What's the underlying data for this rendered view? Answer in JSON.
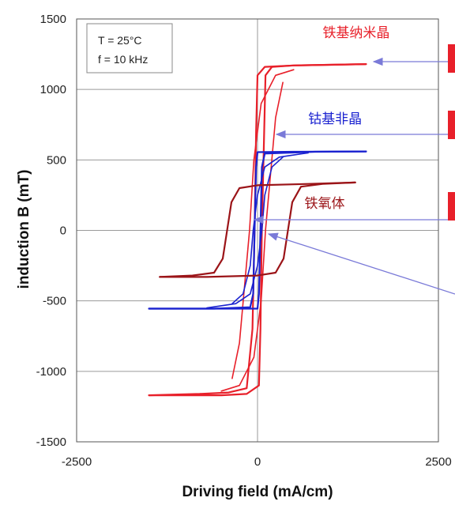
{
  "chart_data": {
    "type": "line",
    "title": "",
    "xlabel": "Driving field (mA/cm)",
    "ylabel": "induction B (mT)",
    "xlim": [
      -2500,
      2500
    ],
    "ylim": [
      -1500,
      1500
    ],
    "x_ticks": [
      "-2500",
      "0",
      "2500"
    ],
    "y_ticks": [
      "1500",
      "1000",
      "500",
      "0",
      "-500",
      "-1000",
      "-1500"
    ],
    "grid": true,
    "conditions": [
      "T = 25°C",
      "f = 10 kHz"
    ],
    "colors": {
      "red": "#e8202a",
      "blue": "#1a22d0",
      "darkred": "#9b1418",
      "annotation": "#7a7ad8"
    },
    "series": [
      {
        "name": "铁基纳米晶",
        "color": "#e8202a",
        "upper": [
          [
            -1500,
            -1170
          ],
          [
            -1200,
            -1165
          ],
          [
            -800,
            -1160
          ],
          [
            -400,
            -1150
          ],
          [
            -150,
            -1120
          ],
          [
            -70,
            -700
          ],
          [
            -40,
            0
          ],
          [
            -20,
            700
          ],
          [
            0,
            1100
          ],
          [
            100,
            1160
          ],
          [
            500,
            1170
          ],
          [
            1500,
            1180
          ]
        ],
        "lower": [
          [
            1500,
            1180
          ],
          [
            1000,
            1175
          ],
          [
            500,
            1170
          ],
          [
            200,
            1160
          ],
          [
            110,
            1100
          ],
          [
            60,
            0
          ],
          [
            40,
            -700
          ],
          [
            20,
            -1100
          ],
          [
            -150,
            -1160
          ],
          [
            -500,
            -1170
          ],
          [
            -1500,
            -1170
          ]
        ],
        "inner_upper": [
          [
            -350,
            -1050
          ],
          [
            -250,
            -800
          ],
          [
            -180,
            -400
          ],
          [
            -110,
            0
          ],
          [
            -50,
            500
          ],
          [
            50,
            900
          ],
          [
            250,
            1100
          ],
          [
            500,
            1140
          ]
        ],
        "inner_lower": [
          [
            350,
            1050
          ],
          [
            250,
            800
          ],
          [
            180,
            400
          ],
          [
            110,
            0
          ],
          [
            50,
            -500
          ],
          [
            -50,
            -900
          ],
          [
            -250,
            -1100
          ],
          [
            -500,
            -1140
          ]
        ]
      },
      {
        "name": "钴基非晶",
        "color": "#1a22d0",
        "upper": [
          [
            -1500,
            -555
          ],
          [
            -600,
            -555
          ],
          [
            -100,
            -545
          ],
          [
            -60,
            -450
          ],
          [
            -40,
            0
          ],
          [
            -20,
            450
          ],
          [
            0,
            555
          ],
          [
            500,
            558
          ],
          [
            1500,
            560
          ]
        ],
        "lower": [
          [
            1500,
            560
          ],
          [
            800,
            558
          ],
          [
            100,
            545
          ],
          [
            60,
            450
          ],
          [
            40,
            0
          ],
          [
            20,
            -450
          ],
          [
            0,
            -555
          ],
          [
            -600,
            -555
          ],
          [
            -1500,
            -555
          ]
        ],
        "inner_upper": [
          [
            -350,
            -520
          ],
          [
            -200,
            -450
          ],
          [
            -100,
            -250
          ],
          [
            -60,
            0
          ],
          [
            0,
            250
          ],
          [
            100,
            450
          ],
          [
            300,
            520
          ],
          [
            700,
            550
          ]
        ],
        "inner_lower": [
          [
            350,
            520
          ],
          [
            200,
            450
          ],
          [
            100,
            250
          ],
          [
            60,
            0
          ],
          [
            0,
            -250
          ],
          [
            -100,
            -450
          ],
          [
            -300,
            -520
          ],
          [
            -700,
            -550
          ]
        ]
      },
      {
        "name": "铁氧体",
        "color": "#9b1418",
        "upper": [
          [
            -1350,
            -330
          ],
          [
            -900,
            -320
          ],
          [
            -600,
            -300
          ],
          [
            -480,
            -200
          ],
          [
            -420,
            0
          ],
          [
            -360,
            200
          ],
          [
            -250,
            300
          ],
          [
            0,
            320
          ],
          [
            700,
            330
          ],
          [
            1350,
            340
          ]
        ],
        "lower": [
          [
            1350,
            340
          ],
          [
            900,
            330
          ],
          [
            600,
            310
          ],
          [
            480,
            200
          ],
          [
            420,
            0
          ],
          [
            360,
            -200
          ],
          [
            250,
            -300
          ],
          [
            0,
            -320
          ],
          [
            -700,
            -330
          ],
          [
            -1350,
            -330
          ]
        ]
      }
    ],
    "annotations": [
      {
        "text": "铁基纳米晶",
        "x": 900,
        "y": 1370,
        "color": "#e8202a"
      },
      {
        "text": "钴基非晶",
        "x": 700,
        "y": 760,
        "color": "#1a22d0"
      },
      {
        "text": "铁氧体",
        "x": 650,
        "y": 160,
        "color": "#9b1418"
      }
    ]
  }
}
